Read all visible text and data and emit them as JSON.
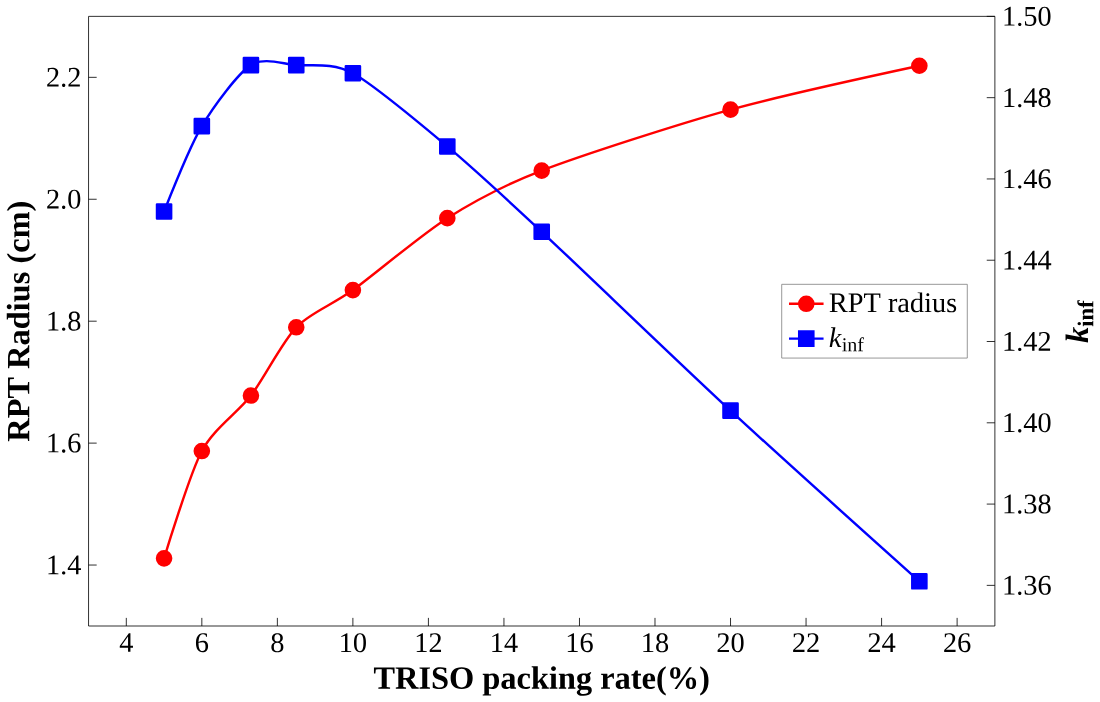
{
  "chart_data": {
    "type": "line",
    "xlabel": "TRISO packing rate(%)",
    "ylabel": "RPT Radius (cm)",
    "y2label": "*k*$_{inf}$",
    "x": [
      5,
      6,
      7.3,
      8.5,
      10,
      12.5,
      15,
      20,
      25
    ],
    "series": [
      {
        "name": "RPT radius",
        "color": "#ff0000",
        "marker": "circle",
        "values": [
          1.411,
          1.587,
          1.678,
          1.79,
          1.851,
          1.969,
          2.047,
          2.147,
          2.219
        ]
      },
      {
        "name": "*k*$_{inf}$",
        "color": "#0000ff",
        "marker": "square",
        "axis": "y2",
        "values": [
          1.452,
          1.473,
          1.488,
          1.488,
          1.486,
          1.468,
          1.447,
          1.403,
          1.361
        ]
      }
    ],
    "xlim": [
      3,
      27
    ],
    "xticks": [
      4,
      6,
      8,
      10,
      12,
      14,
      16,
      18,
      20,
      22,
      24,
      26
    ],
    "ylim": [
      1.3,
      2.3
    ],
    "yticks": [
      {
        "value": 1.4,
        "label": "1.4"
      },
      {
        "value": 1.6,
        "label": "1.6"
      },
      {
        "value": 1.8,
        "label": "1.8"
      },
      {
        "value": 2.0,
        "label": "2.0"
      },
      {
        "value": 2.2,
        "label": "2.2"
      }
    ],
    "y2lim": [
      1.35,
      1.5
    ],
    "y2ticks": [
      {
        "value": 1.36,
        "label": "1.36"
      },
      {
        "value": 1.38,
        "label": "1.38"
      },
      {
        "value": 1.4,
        "label": "1.40"
      },
      {
        "value": 1.42,
        "label": "1.42"
      },
      {
        "value": 1.44,
        "label": "1.44"
      },
      {
        "value": 1.46,
        "label": "1.46"
      },
      {
        "value": 1.48,
        "label": "1.48"
      },
      {
        "value": 1.5,
        "label": "1.50"
      }
    ],
    "legend": "right",
    "grid": false,
    "line_style": "solid"
  }
}
